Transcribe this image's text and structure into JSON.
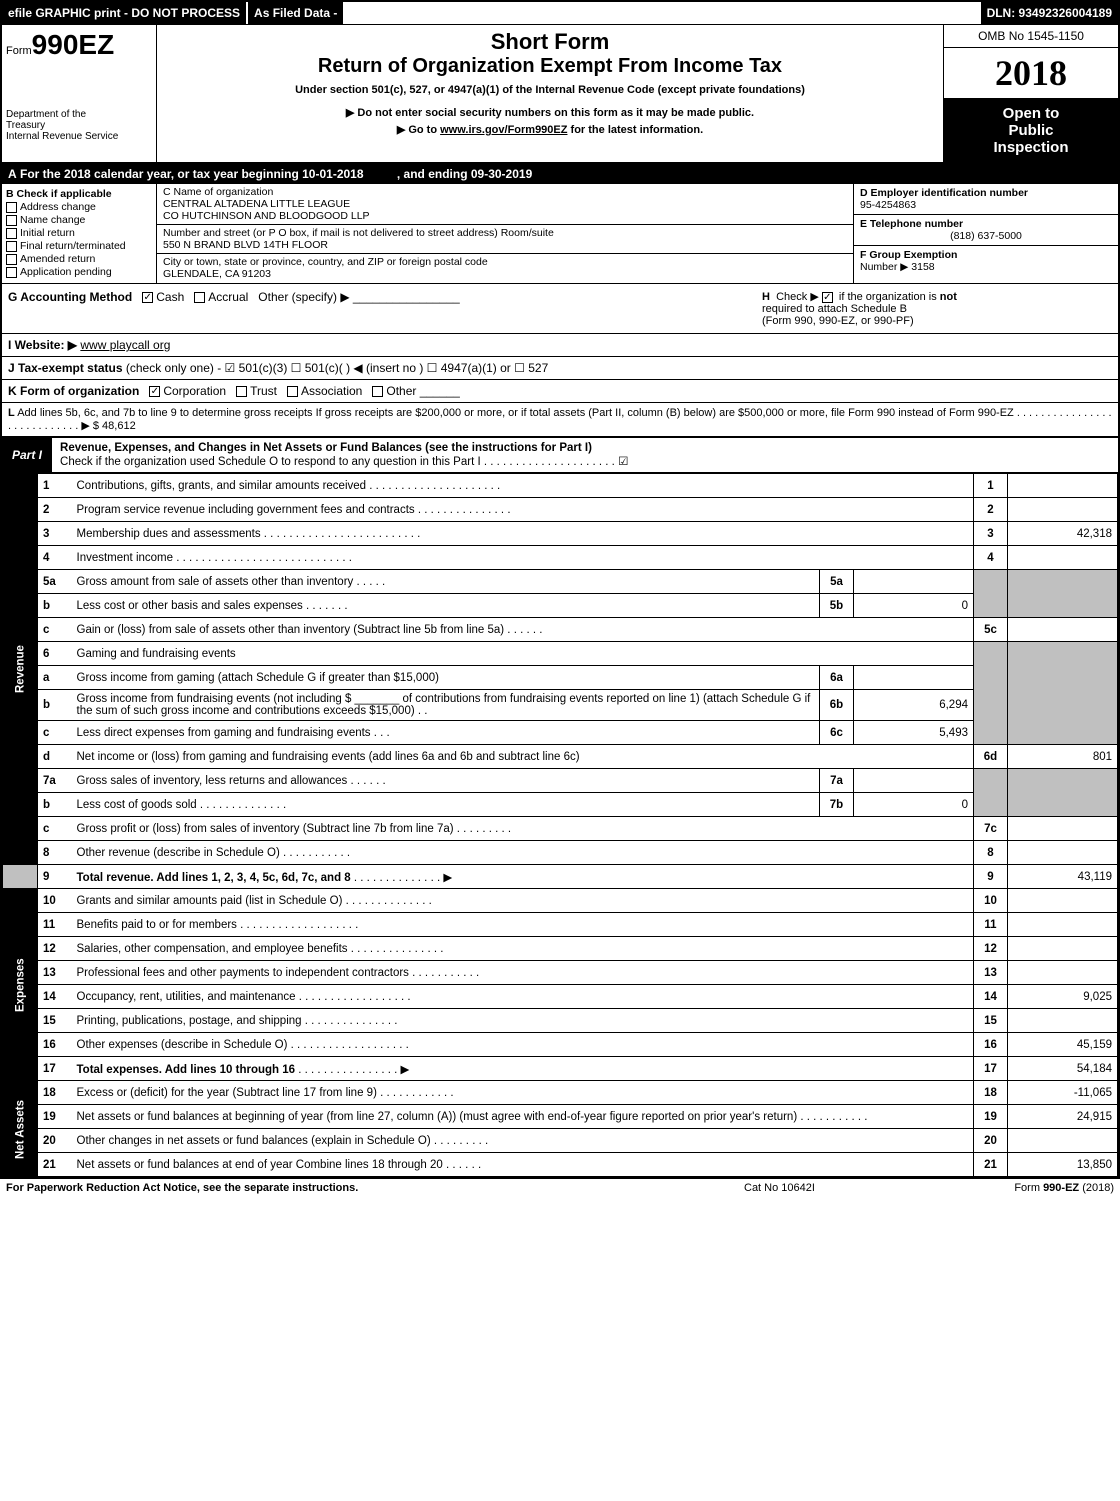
{
  "topbar": {
    "efile": "efile GRAPHIC print - DO NOT PROCESS",
    "asfiled": "As Filed Data -",
    "dln": "DLN: 93492326004189"
  },
  "header": {
    "form_prefix": "Form",
    "form_number": "990EZ",
    "dept1": "Department of the",
    "dept2": "Treasury",
    "dept3": "Internal Revenue Service",
    "short_form": "Short Form",
    "title": "Return of Organization Exempt From Income Tax",
    "under": "Under section 501(c), 527, or 4947(a)(1) of the Internal Revenue Code (except private foundations)",
    "note1": "▶ Do not enter social security numbers on this form as it may be made public.",
    "note2": "▶ Go to www.irs.gov/Form990EZ for the latest information.",
    "omb": "OMB No 1545-1150",
    "year": "2018",
    "open1": "Open to",
    "open2": "Public",
    "open3": "Inspection"
  },
  "row_a": {
    "a": "A",
    "text1": "For the 2018 calendar year, or tax year beginning 10-01-2018",
    "text2": ", and ending 09-30-2019"
  },
  "col_b": {
    "label": "B Check if applicable",
    "items": [
      "Address change",
      "Name change",
      "Initial return",
      "Final return/terminated",
      "Amended return",
      "Application pending"
    ]
  },
  "col_c": {
    "name_label": "C Name of organization",
    "name1": "CENTRAL ALTADENA LITTLE LEAGUE",
    "name2": "CO HUTCHINSON AND BLOODGOOD LLP",
    "street_label": "Number and street (or P O box, if mail is not delivered to street address)  Room/suite",
    "street": "550 N BRAND BLVD 14TH FLOOR",
    "city_label": "City or town, state or province, country, and ZIP or foreign postal code",
    "city": "GLENDALE, CA 91203"
  },
  "col_def": {
    "d_label": "D Employer identification number",
    "d_val": "95-4254863",
    "e_label": "E Telephone number",
    "e_val": "(818) 637-5000",
    "f_label": "F Group Exemption",
    "f_label2": "Number ▶",
    "f_val": "3158"
  },
  "row_g": {
    "label": "G Accounting Method",
    "cash": "Cash",
    "accrual": "Accrual",
    "other": "Other (specify) ▶"
  },
  "row_h": {
    "label": "H",
    "text1": "Check ▶ ☑ if the organization is not",
    "text2": "required to attach Schedule B",
    "text3": "(Form 990, 990-EZ, or 990-PF)"
  },
  "row_i": {
    "label": "I Website: ▶",
    "val": "www playcall org"
  },
  "row_j": {
    "label": "J Tax-exempt status",
    "text": "(check only one) - ☑ 501(c)(3) ☐ 501(c)( ) ◀ (insert no ) ☐ 4947(a)(1) or ☐ 527"
  },
  "row_k": {
    "label": "K Form of organization",
    "corp": "Corporation",
    "trust": "Trust",
    "assoc": "Association",
    "other": "Other"
  },
  "row_l": {
    "label": "L",
    "text": "Add lines 5b, 6c, and 7b to line 9 to determine gross receipts  If gross receipts are $200,000 or more, or if total assets (Part II, column (B) below) are $500,000 or more, file Form 990 instead of Form 990-EZ",
    "arrow": "▶ $ 48,612"
  },
  "part1": {
    "label": "Part I",
    "title": "Revenue, Expenses, and Changes in Net Assets or Fund Balances (see the instructions for Part I)",
    "subtitle": "Check if the organization used Schedule O to respond to any question in this Part I",
    "check": "☑"
  },
  "sides": {
    "revenue": "Revenue",
    "expenses": "Expenses",
    "netassets": "Net Assets"
  },
  "lines": {
    "l1": {
      "n": "1",
      "d": "Contributions, gifts, grants, and similar amounts received",
      "rn": "1",
      "rv": ""
    },
    "l2": {
      "n": "2",
      "d": "Program service revenue including government fees and contracts",
      "rn": "2",
      "rv": ""
    },
    "l3": {
      "n": "3",
      "d": "Membership dues and assessments",
      "rn": "3",
      "rv": "42,318"
    },
    "l4": {
      "n": "4",
      "d": "Investment income",
      "rn": "4",
      "rv": ""
    },
    "l5a": {
      "n": "5a",
      "d": "Gross amount from sale of assets other than inventory",
      "mn": "5a",
      "mv": ""
    },
    "l5b": {
      "n": "b",
      "d": "Less cost or other basis and sales expenses",
      "mn": "5b",
      "mv": "0"
    },
    "l5c": {
      "n": "c",
      "d": "Gain or (loss) from sale of assets other than inventory (Subtract line 5b from line 5a)",
      "rn": "5c",
      "rv": ""
    },
    "l6": {
      "n": "6",
      "d": "Gaming and fundraising events"
    },
    "l6a": {
      "n": "a",
      "d": "Gross income from gaming (attach Schedule G if greater than $15,000)",
      "mn": "6a",
      "mv": ""
    },
    "l6b": {
      "n": "b",
      "d": "Gross income from fundraising events (not including $ _______ of contributions from fundraising events reported on line 1) (attach Schedule G if the sum of such gross income and contributions exceeds $15,000)",
      "mn": "6b",
      "mv": "6,294"
    },
    "l6c": {
      "n": "c",
      "d": "Less direct expenses from gaming and fundraising events",
      "mn": "6c",
      "mv": "5,493"
    },
    "l6d": {
      "n": "d",
      "d": "Net income or (loss) from gaming and fundraising events (add lines 6a and 6b and subtract line 6c)",
      "rn": "6d",
      "rv": "801"
    },
    "l7a": {
      "n": "7a",
      "d": "Gross sales of inventory, less returns and allowances",
      "mn": "7a",
      "mv": ""
    },
    "l7b": {
      "n": "b",
      "d": "Less cost of goods sold",
      "mn": "7b",
      "mv": "0"
    },
    "l7c": {
      "n": "c",
      "d": "Gross profit or (loss) from sales of inventory (Subtract line 7b from line 7a)",
      "rn": "7c",
      "rv": ""
    },
    "l8": {
      "n": "8",
      "d": "Other revenue (describe in Schedule O)",
      "rn": "8",
      "rv": ""
    },
    "l9": {
      "n": "9",
      "d": "Total revenue. Add lines 1, 2, 3, 4, 5c, 6d, 7c, and 8",
      "arrow": "▶",
      "rn": "9",
      "rv": "43,119"
    },
    "l10": {
      "n": "10",
      "d": "Grants and similar amounts paid (list in Schedule O)",
      "rn": "10",
      "rv": ""
    },
    "l11": {
      "n": "11",
      "d": "Benefits paid to or for members",
      "rn": "11",
      "rv": ""
    },
    "l12": {
      "n": "12",
      "d": "Salaries, other compensation, and employee benefits",
      "rn": "12",
      "rv": ""
    },
    "l13": {
      "n": "13",
      "d": "Professional fees and other payments to independent contractors",
      "rn": "13",
      "rv": ""
    },
    "l14": {
      "n": "14",
      "d": "Occupancy, rent, utilities, and maintenance",
      "rn": "14",
      "rv": "9,025"
    },
    "l15": {
      "n": "15",
      "d": "Printing, publications, postage, and shipping",
      "rn": "15",
      "rv": ""
    },
    "l16": {
      "n": "16",
      "d": "Other expenses (describe in Schedule O)",
      "rn": "16",
      "rv": "45,159"
    },
    "l17": {
      "n": "17",
      "d": "Total expenses. Add lines 10 through 16",
      "arrow": "▶",
      "rn": "17",
      "rv": "54,184"
    },
    "l18": {
      "n": "18",
      "d": "Excess or (deficit) for the year (Subtract line 17 from line 9)",
      "rn": "18",
      "rv": "-11,065"
    },
    "l19": {
      "n": "19",
      "d": "Net assets or fund balances at beginning of year (from line 27, column (A)) (must agree with end-of-year figure reported on prior year's return)",
      "rn": "19",
      "rv": "24,915"
    },
    "l20": {
      "n": "20",
      "d": "Other changes in net assets or fund balances (explain in Schedule O)",
      "rn": "20",
      "rv": ""
    },
    "l21": {
      "n": "21",
      "d": "Net assets or fund balances at end of year  Combine lines 18 through 20",
      "rn": "21",
      "rv": "13,850"
    }
  },
  "footer": {
    "left": "For Paperwork Reduction Act Notice, see the separate instructions.",
    "mid": "Cat No 10642I",
    "right": "Form 990-EZ (2018)"
  }
}
